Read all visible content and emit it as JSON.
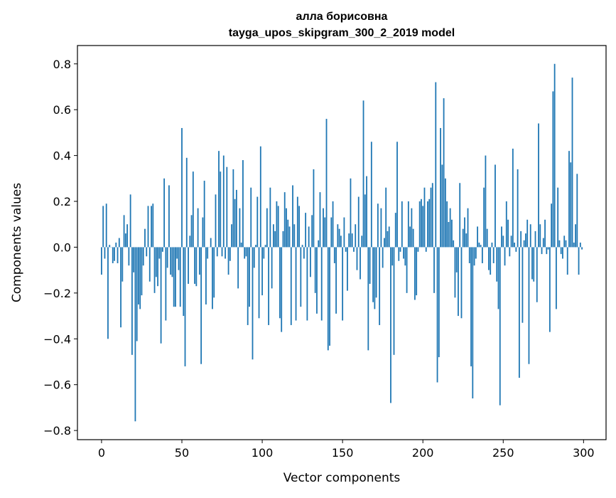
{
  "chart_data": {
    "type": "bar",
    "title": "алла борисовна",
    "subtitle": "tayga_upos_skipgram_300_2_2019 model",
    "xlabel": "Vector components",
    "ylabel": "Components values",
    "xlim": [
      -15,
      314
    ],
    "ylim": [
      -0.84,
      0.88
    ],
    "xticks": [
      0,
      50,
      100,
      150,
      200,
      250,
      300
    ],
    "xtick_labels": [
      "0",
      "50",
      "100",
      "150",
      "200",
      "250",
      "300"
    ],
    "yticks": [
      -0.8,
      -0.6,
      -0.4,
      -0.2,
      0.0,
      0.2,
      0.4,
      0.6,
      0.8
    ],
    "ytick_labels": [
      "−0.8",
      "−0.6",
      "−0.4",
      "−0.2",
      "0.0",
      "0.2",
      "0.4",
      "0.6",
      "0.8"
    ],
    "grid": false,
    "bar_color": "#1f77b4",
    "values": [
      -0.12,
      0.18,
      -0.05,
      0.19,
      -0.4,
      0.01,
      0.0,
      -0.07,
      -0.06,
      0.02,
      -0.07,
      0.04,
      -0.35,
      -0.15,
      0.14,
      0.06,
      0.1,
      -0.08,
      0.23,
      -0.47,
      -0.11,
      -0.76,
      -0.41,
      -0.25,
      -0.27,
      -0.21,
      -0.08,
      0.08,
      -0.04,
      0.18,
      -0.15,
      0.18,
      0.19,
      -0.2,
      -0.13,
      -0.17,
      -0.05,
      -0.42,
      -0.02,
      0.3,
      -0.32,
      -0.09,
      0.27,
      -0.12,
      -0.13,
      -0.26,
      -0.26,
      -0.05,
      -0.1,
      -0.26,
      0.52,
      -0.3,
      -0.52,
      0.39,
      -0.16,
      0.05,
      0.14,
      0.33,
      -0.16,
      -0.17,
      0.17,
      -0.12,
      -0.51,
      0.13,
      0.29,
      -0.25,
      -0.05,
      0.0,
      0.04,
      -0.27,
      -0.22,
      0.23,
      -0.04,
      0.42,
      0.33,
      -0.04,
      0.4,
      -0.05,
      0.35,
      -0.12,
      -0.06,
      0.1,
      0.34,
      0.21,
      0.25,
      -0.18,
      0.17,
      0.02,
      0.38,
      -0.05,
      -0.04,
      -0.34,
      -0.26,
      0.26,
      -0.49,
      -0.09,
      0.01,
      0.22,
      -0.31,
      0.44,
      -0.21,
      -0.05,
      0.01,
      0.17,
      -0.34,
      0.26,
      -0.18,
      0.1,
      0.07,
      0.2,
      0.18,
      -0.31,
      -0.37,
      0.07,
      0.24,
      0.17,
      0.12,
      0.09,
      -0.34,
      0.27,
      0.1,
      -0.32,
      0.22,
      0.18,
      -0.26,
      0.01,
      -0.05,
      0.15,
      -0.32,
      0.09,
      -0.13,
      0.14,
      0.34,
      -0.2,
      -0.29,
      0.03,
      0.24,
      -0.32,
      0.17,
      0.13,
      0.56,
      -0.45,
      -0.43,
      0.13,
      0.2,
      -0.07,
      -0.29,
      0.1,
      0.08,
      0.05,
      -0.32,
      0.13,
      -0.02,
      -0.19,
      0.06,
      0.3,
      0.06,
      -0.02,
      0.1,
      -0.1,
      0.22,
      -0.14,
      0.05,
      0.64,
      0.23,
      0.31,
      -0.45,
      -0.16,
      0.46,
      -0.24,
      -0.27,
      -0.22,
      0.19,
      -0.34,
      0.17,
      -0.09,
      0.04,
      0.26,
      0.07,
      0.09,
      -0.68,
      -0.08,
      -0.47,
      0.15,
      0.46,
      -0.06,
      -0.02,
      0.2,
      -0.05,
      -0.08,
      -0.2,
      0.2,
      0.09,
      0.17,
      0.08,
      -0.23,
      -0.21,
      -0.02,
      0.2,
      0.21,
      0.18,
      0.26,
      -0.02,
      0.2,
      0.21,
      0.26,
      0.28,
      -0.2,
      0.72,
      -0.59,
      -0.48,
      0.52,
      0.36,
      0.65,
      0.3,
      0.2,
      0.11,
      0.17,
      0.12,
      0.03,
      -0.22,
      -0.11,
      -0.3,
      0.28,
      -0.31,
      0.08,
      0.13,
      0.06,
      0.17,
      -0.07,
      -0.52,
      -0.66,
      -0.08,
      -0.05,
      0.09,
      0.02,
      0.01,
      -0.07,
      0.26,
      0.4,
      0.08,
      -0.1,
      -0.12,
      0.02,
      -0.07,
      0.36,
      -0.15,
      -0.27,
      -0.69,
      0.09,
      0.05,
      -0.08,
      0.2,
      0.12,
      -0.04,
      0.05,
      0.43,
      0.02,
      -0.02,
      0.34,
      -0.57,
      0.07,
      -0.33,
      0.03,
      0.06,
      0.12,
      -0.51,
      0.1,
      -0.14,
      -0.15,
      0.07,
      -0.24,
      0.54,
      0.1,
      -0.03,
      0.04,
      0.12,
      -0.03,
      -0.01,
      -0.37,
      0.19,
      0.68,
      0.8,
      -0.27,
      0.26,
      0.03,
      -0.03,
      -0.05,
      0.05,
      0.03,
      -0.12,
      0.42,
      0.37,
      0.74,
      0.02,
      0.1,
      0.32,
      -0.12,
      0.02,
      -0.01
    ]
  }
}
